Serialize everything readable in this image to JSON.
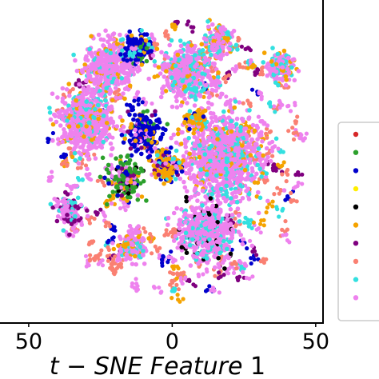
{
  "chart_data": {
    "type": "scatter",
    "title": "",
    "xlabel": {
      "italic_part": "t − SNE Feature",
      "upright_part": "1"
    },
    "ylabel": "",
    "xlim": [
      -60,
      52
    ],
    "ylim": [
      -55,
      52
    ],
    "x_ticks": [
      {
        "value": -50,
        "label": "50"
      },
      {
        "value": 0,
        "label": "0"
      },
      {
        "value": 50,
        "label": "50"
      }
    ],
    "grid": false,
    "legend": {
      "placement": "right",
      "labels_visible": false
    },
    "series": [
      {
        "color": "#d62728"
      },
      {
        "color": "#2ca02c"
      },
      {
        "color": "#0000cc"
      },
      {
        "color": "#ffee00"
      },
      {
        "color": "#000000"
      },
      {
        "color": "#f5a300"
      },
      {
        "color": "#7f007f"
      },
      {
        "color": "#fa8072"
      },
      {
        "color": "#33e0e0"
      },
      {
        "color": "#ee82ee"
      }
    ],
    "clusters": [
      {
        "x": -30,
        "y": 12,
        "spread": 8,
        "main": 9,
        "mix": [
          8,
          8,
          5,
          9,
          9
        ]
      },
      {
        "x": -22,
        "y": 30,
        "spread": 7,
        "main": 9,
        "mix": [
          9,
          8,
          9,
          9,
          5
        ]
      },
      {
        "x": 18,
        "y": 0,
        "spread": 11,
        "main": 9,
        "mix": [
          8,
          8,
          9,
          9,
          5
        ]
      },
      {
        "x": 5,
        "y": 28,
        "spread": 7,
        "main": 9,
        "mix": [
          9,
          8,
          5,
          8
        ]
      },
      {
        "x": 12,
        "y": -25,
        "spread": 8,
        "main": 9,
        "mix": [
          8,
          8,
          9,
          9,
          4
        ]
      },
      {
        "x": -10,
        "y": 8,
        "spread": 5,
        "main": 2,
        "mix": [
          1,
          6,
          5,
          9,
          2
        ]
      },
      {
        "x": -16,
        "y": -8,
        "spread": 5,
        "main": 1,
        "mix": [
          2,
          6,
          5,
          4,
          9
        ]
      },
      {
        "x": -12,
        "y": 36,
        "spread": 4,
        "main": 2,
        "mix": [
          1,
          5,
          9,
          8
        ]
      },
      {
        "x": -2,
        "y": -3,
        "spread": 4,
        "main": 5,
        "mix": [
          8,
          2,
          9,
          6
        ]
      },
      {
        "x": 8,
        "y": 12,
        "spread": 3,
        "main": 5,
        "mix": [
          8,
          9,
          2
        ]
      },
      {
        "x": 16,
        "y": 38,
        "spread": 4,
        "main": 9,
        "mix": [
          8,
          5
        ]
      },
      {
        "x": 38,
        "y": 30,
        "spread": 4,
        "main": 9,
        "mix": [
          8,
          5
        ]
      },
      {
        "x": -36,
        "y": -18,
        "spread": 4,
        "main": 9,
        "mix": [
          8,
          6
        ]
      },
      {
        "x": -14,
        "y": -30,
        "spread": 4,
        "main": 9,
        "mix": [
          8,
          5
        ]
      }
    ],
    "scattered_points": 220
  }
}
